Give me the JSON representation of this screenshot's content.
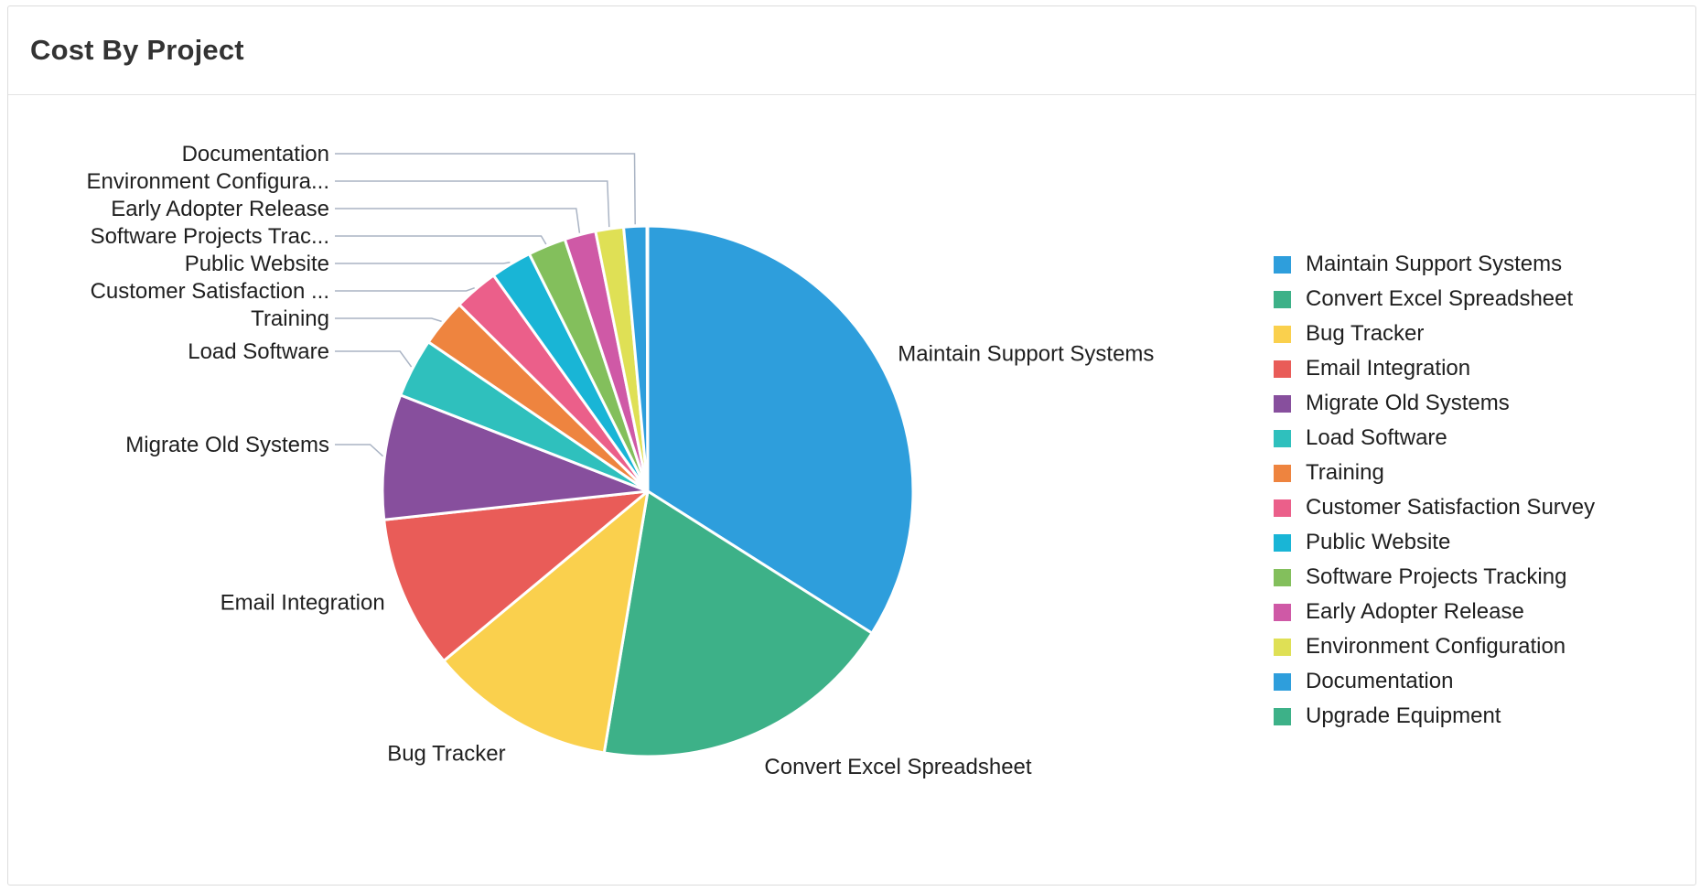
{
  "panel": {
    "title": "Cost By Project"
  },
  "chart_data": {
    "type": "pie",
    "title": "Cost By Project",
    "legend_position": "right",
    "slices": [
      {
        "label": "Maintain Support Systems",
        "value": 33.9,
        "color": "#2e9edc",
        "callout": "Maintain Support Systems"
      },
      {
        "label": "Convert Excel Spreadsheet",
        "value": 18.6,
        "color": "#3db188",
        "callout": "Convert Excel Spreadsheet"
      },
      {
        "label": "Bug Tracker",
        "value": 11.3,
        "color": "#fad04d",
        "callout": "Bug Tracker"
      },
      {
        "label": "Email Integration",
        "value": 9.3,
        "color": "#e95c58",
        "callout": "Email Integration"
      },
      {
        "label": "Migrate Old Systems",
        "value": 7.6,
        "color": "#874f9d",
        "callout": "Migrate Old Systems"
      },
      {
        "label": "Load Software",
        "value": 3.6,
        "color": "#2fc0bd",
        "callout": "Load Software"
      },
      {
        "label": "Training",
        "value": 2.9,
        "color": "#ee843f",
        "callout": "Training"
      },
      {
        "label": "Customer Satisfaction Survey",
        "value": 2.7,
        "color": "#eb5f8a",
        "callout": "Customer Satisfaction ..."
      },
      {
        "label": "Public Website",
        "value": 2.5,
        "color": "#19b5d6",
        "callout": "Public Website"
      },
      {
        "label": "Software Projects Tracking",
        "value": 2.3,
        "color": "#83bf5c",
        "callout": "Software Projects Trac..."
      },
      {
        "label": "Early Adopter Release",
        "value": 1.9,
        "color": "#cf59a6",
        "callout": "Early Adopter Release"
      },
      {
        "label": "Environment Configuration",
        "value": 1.7,
        "color": "#dfe055",
        "callout": "Environment Configura..."
      },
      {
        "label": "Documentation",
        "value": 1.4,
        "color": "#2e9edc",
        "callout": "Documentation"
      },
      {
        "label": "Upgrade Equipment",
        "value": 0.05,
        "color": "#3db188",
        "callout": ""
      }
    ]
  }
}
